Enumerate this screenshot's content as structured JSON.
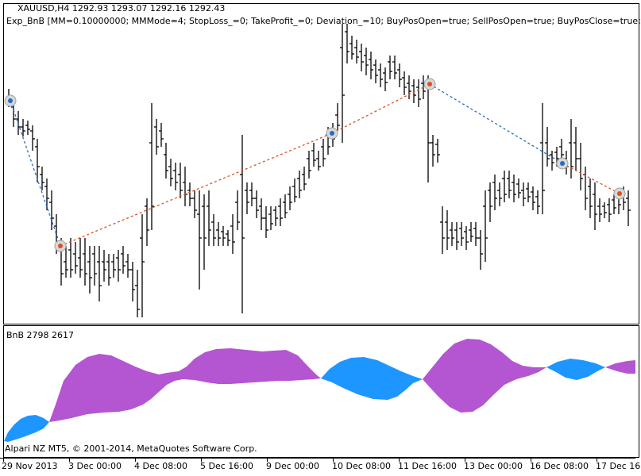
{
  "header": {
    "symbol_line": "XAUUSD,H4  1292.93 1293.07 1292.16 1292.43",
    "expert_line": "Exp_BnB [MM=0.10000000; MMMode=4; StopLoss_=0; TakeProfit_=0; Deviation_=10; BuyPosOpen=true; SellPosOpen=true; BuyPosClose=true;"
  },
  "indicator": {
    "label": "BnB 2798 2617",
    "colors": {
      "bulls": "#b455d2",
      "bears": "#1e96ff"
    }
  },
  "copyright": "Alpari NZ MT5, © 2001-2014, MetaQuotes Software Corp.",
  "time_axis": [
    "29 Nov 2013",
    "3 Dec 00:00",
    "4 Dec 08:00",
    "5 Dec 16:00",
    "9 Dec 00:00",
    "10 Dec 08:00",
    "11 Dec 16:00",
    "13 Dec 00:00",
    "16 Dec 08:00",
    "17 Dec 16"
  ],
  "trade_colors": {
    "buy": "#1e6ecc",
    "sell": "#e05020"
  }
}
